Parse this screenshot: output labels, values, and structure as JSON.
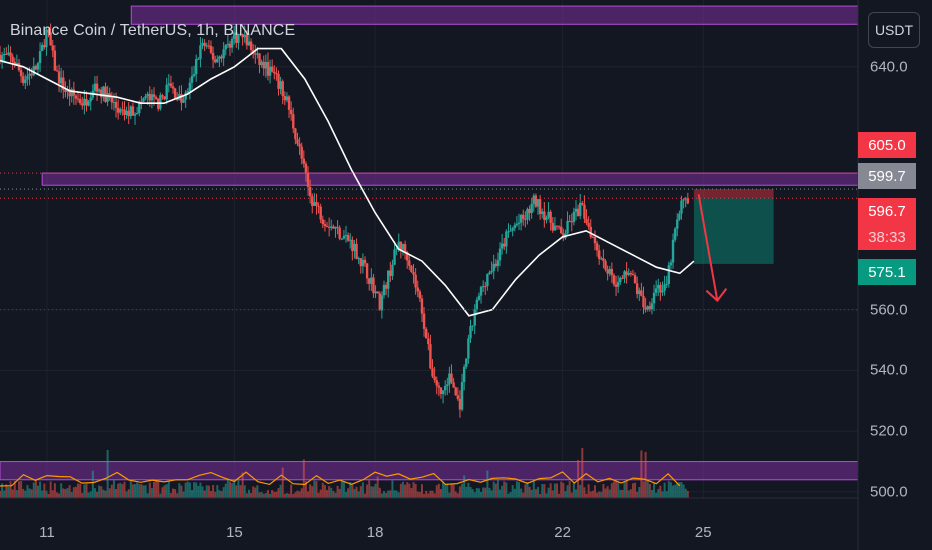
{
  "header": {
    "symbol_title": "Binance Coin / TetherUS, 1h, BINANCE",
    "currency_button": "USDT"
  },
  "price_labels": [
    {
      "id": "label-605",
      "text": "605.0",
      "value": 605.0,
      "color": "#f23645"
    },
    {
      "id": "label-5997",
      "text": "599.7",
      "value": 599.7,
      "color": "#868993"
    },
    {
      "id": "label-5967",
      "text": "596.7",
      "value": 596.7,
      "color": "#f23645"
    },
    {
      "id": "label-5751",
      "text": "575.1",
      "value": 575.1,
      "color": "#089981"
    }
  ],
  "countdown": "38:33",
  "colors": {
    "background": "#131722",
    "up": "#26a69a",
    "down": "#ef5350",
    "zone_fill": "#7b2f9e",
    "zone_border": "#b24fd4",
    "ma_line": "#ffffff",
    "arrow": "#f23645",
    "volume_ma": "#ff9800"
  },
  "chart_data": {
    "type": "candlestick",
    "y_axis": {
      "ticks": [
        "640.0",
        "560.0",
        "540.0",
        "520.0",
        "500.0"
      ],
      "tick_values": [
        640,
        560,
        540,
        520,
        500
      ],
      "range": [
        498,
        662
      ]
    },
    "x_axis": {
      "ticks": [
        "11",
        "15",
        "18",
        "22",
        "25"
      ],
      "tick_positions": [
        1,
        5,
        8,
        12,
        15
      ],
      "range": [
        0,
        18.3
      ]
    },
    "zones": [
      {
        "name": "upper resistance",
        "low": 654,
        "high": 660,
        "from": 2.8,
        "to": 18.3
      },
      {
        "name": "middle resistance",
        "low": 601,
        "high": 605,
        "from": 0.9,
        "to": 18.3
      },
      {
        "name": "lower zone",
        "low": 504,
        "high": 510,
        "from": 0,
        "to": 18.3
      }
    ],
    "close_path": [
      [
        0,
        644
      ],
      [
        0.3,
        642
      ],
      [
        0.5,
        636
      ],
      [
        0.8,
        640
      ],
      [
        1.0,
        652
      ],
      [
        1.2,
        638
      ],
      [
        1.4,
        632
      ],
      [
        1.6,
        630
      ],
      [
        1.8,
        628
      ],
      [
        2.0,
        634
      ],
      [
        2.3,
        630
      ],
      [
        2.6,
        624
      ],
      [
        2.9,
        626
      ],
      [
        3.1,
        630
      ],
      [
        3.4,
        628
      ],
      [
        3.6,
        634
      ],
      [
        3.9,
        628
      ],
      [
        4.1,
        636
      ],
      [
        4.3,
        648
      ],
      [
        4.6,
        642
      ],
      [
        4.8,
        646
      ],
      [
        5.0,
        650
      ],
      [
        5.2,
        650
      ],
      [
        5.5,
        642
      ],
      [
        5.8,
        638
      ],
      [
        6.1,
        630
      ],
      [
        6.4,
        612
      ],
      [
        6.6,
        598
      ],
      [
        6.9,
        590
      ],
      [
        7.2,
        586
      ],
      [
        7.5,
        582
      ],
      [
        7.7,
        576
      ],
      [
        7.9,
        570
      ],
      [
        8.1,
        562
      ],
      [
        8.3,
        572
      ],
      [
        8.5,
        582
      ],
      [
        8.7,
        578
      ],
      [
        9.0,
        560
      ],
      [
        9.2,
        540
      ],
      [
        9.4,
        532
      ],
      [
        9.6,
        538
      ],
      [
        9.8,
        528
      ],
      [
        10.0,
        550
      ],
      [
        10.2,
        564
      ],
      [
        10.4,
        572
      ],
      [
        10.6,
        576
      ],
      [
        10.8,
        584
      ],
      [
        11.0,
        588
      ],
      [
        11.2,
        590
      ],
      [
        11.4,
        596
      ],
      [
        11.6,
        592
      ],
      [
        11.8,
        588
      ],
      [
        12.0,
        584
      ],
      [
        12.2,
        590
      ],
      [
        12.4,
        594
      ],
      [
        12.6,
        586
      ],
      [
        12.8,
        578
      ],
      [
        13.0,
        572
      ],
      [
        13.2,
        568
      ],
      [
        13.4,
        574
      ],
      [
        13.6,
        566
      ],
      [
        13.8,
        560
      ],
      [
        14.0,
        568
      ],
      [
        14.2,
        566
      ],
      [
        14.4,
        586
      ],
      [
        14.6,
        598
      ],
      [
        14.7,
        596
      ]
    ],
    "ma_path": [
      [
        0,
        642
      ],
      [
        0.5,
        640
      ],
      [
        1.0,
        636
      ],
      [
        1.5,
        632
      ],
      [
        2.0,
        631
      ],
      [
        2.5,
        630
      ],
      [
        3.0,
        628
      ],
      [
        3.5,
        628
      ],
      [
        4.0,
        631
      ],
      [
        4.5,
        636
      ],
      [
        5.0,
        640
      ],
      [
        5.5,
        646
      ],
      [
        6.0,
        646
      ],
      [
        6.5,
        636
      ],
      [
        7.0,
        622
      ],
      [
        7.5,
        606
      ],
      [
        8.0,
        592
      ],
      [
        8.5,
        580
      ],
      [
        9.0,
        576
      ],
      [
        9.5,
        568
      ],
      [
        10.0,
        558
      ],
      [
        10.5,
        560
      ],
      [
        11.0,
        570
      ],
      [
        11.5,
        578
      ],
      [
        12.0,
        584
      ],
      [
        12.5,
        586
      ],
      [
        13.0,
        582
      ],
      [
        13.5,
        578
      ],
      [
        14.0,
        574
      ],
      [
        14.5,
        572
      ],
      [
        14.8,
        576
      ]
    ],
    "trade_box": {
      "entry": 596.7,
      "stop": 599.7,
      "target": 575.1,
      "from": 14.8,
      "to": 16.5
    },
    "arrow": {
      "from": [
        14.9,
        598
      ],
      "to": [
        15.3,
        563
      ]
    },
    "last_price": 596.7
  }
}
